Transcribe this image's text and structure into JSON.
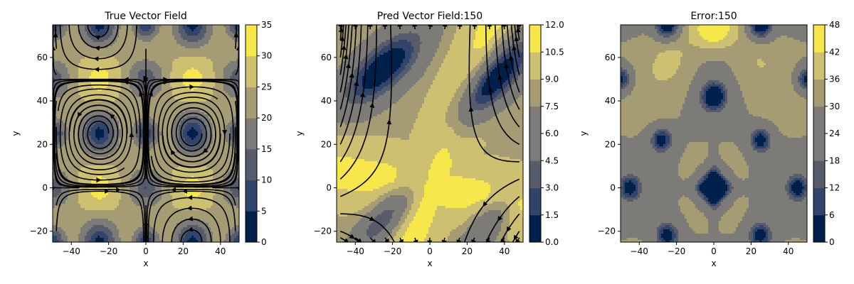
{
  "colors": {
    "cmap": [
      "#00204c",
      "#31446b",
      "#575c6d",
      "#7c7b78",
      "#a59c74",
      "#cdc070",
      "#f8e74a"
    ],
    "stream": "#000000",
    "frame": "#000000",
    "background": "#ffffff"
  },
  "chart_data": [
    {
      "type": "contour",
      "title": "True Vector Field",
      "xlabel": "x",
      "ylabel": "y",
      "xlim": [
        -50,
        50
      ],
      "ylim": [
        -25,
        75
      ],
      "xticks": [
        -40,
        -20,
        0,
        20,
        40
      ],
      "yticks": [
        -20,
        0,
        20,
        40,
        60
      ],
      "field": "cellular",
      "vortex_centers": [
        [
          -25,
          25
        ],
        [
          25,
          25
        ],
        [
          -25,
          75
        ],
        [
          25,
          75
        ],
        [
          -25,
          -25
        ],
        [
          25,
          -25
        ]
      ],
      "colorbar": {
        "min": 0,
        "max": 35,
        "ticks": [
          0,
          5,
          10,
          15,
          20,
          25,
          30,
          35
        ]
      },
      "streamlines": true
    },
    {
      "type": "contour",
      "title": "Pred Vector Field:150",
      "xlabel": "x",
      "ylabel": "y",
      "xlim": [
        -50,
        50
      ],
      "ylim": [
        -25,
        75
      ],
      "xticks": [
        -40,
        -20,
        0,
        20,
        40
      ],
      "yticks": [
        -20,
        0,
        20,
        40,
        60
      ],
      "field": "saddle",
      "saddle_point": [
        0,
        0
      ],
      "colorbar": {
        "min": 0,
        "max": 12,
        "ticks": [
          "0.0",
          "1.5",
          "3.0",
          "4.5",
          "6.0",
          "7.5",
          "9.0",
          "10.5",
          "12.0"
        ]
      },
      "streamlines": true
    },
    {
      "type": "contour",
      "title": "Error:150",
      "xlabel": "x",
      "ylabel": "y",
      "xlim": [
        -50,
        50
      ],
      "ylim": [
        -25,
        75
      ],
      "xticks": [
        -40,
        -20,
        0,
        20,
        40
      ],
      "yticks": [
        -20,
        0,
        20,
        40,
        60
      ],
      "field": "error",
      "colorbar": {
        "min": 0,
        "max": 48,
        "ticks": [
          0,
          6,
          12,
          18,
          24,
          30,
          36,
          42,
          48
        ]
      },
      "streamlines": false
    }
  ]
}
